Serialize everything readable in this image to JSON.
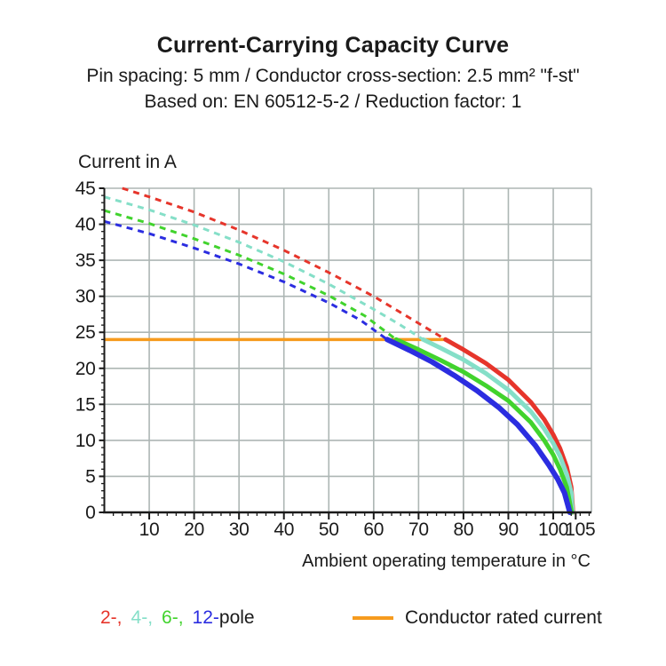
{
  "header": {
    "title": "Current-Carrying Capacity Curve",
    "subtitle1": "Pin spacing: 5 mm / Conductor cross-section: 2.5 mm² \"f-st\"",
    "subtitle2": "Based on: EN 60512-5-2 / Reduction factor: 1"
  },
  "chart_data": {
    "type": "line",
    "title": "Current-Carrying Capacity Curve",
    "xlabel": "Ambient operating temperature in °C",
    "ylabel": "Current in A",
    "xlim": [
      0,
      108.5
    ],
    "ylim": [
      0,
      45
    ],
    "x_ticks": [
      10,
      20,
      30,
      40,
      50,
      60,
      70,
      80,
      90,
      100,
      105
    ],
    "y_ticks": [
      0,
      5,
      10,
      15,
      20,
      25,
      30,
      35,
      40,
      45
    ],
    "x_minor_step": 2,
    "y_minor_step": 1,
    "grid_x_step": 10,
    "grid_y_step": 5,
    "grid_on": true,
    "colors": {
      "grid": "#adb6b4",
      "axis": "#1a1a1a",
      "text": "#1a1a1a"
    },
    "rated_current": {
      "label": "Conductor rated current",
      "value": 24,
      "x_start": 0,
      "x_end": 76,
      "color": "#f69b1e"
    },
    "series": [
      {
        "name": "2-pole",
        "color": "#e6352b",
        "style_above_rated": "dashed",
        "dashed": [
          [
            4,
            45
          ],
          [
            10,
            43.8
          ],
          [
            20,
            41.7
          ],
          [
            30,
            39.2
          ],
          [
            40,
            36.4
          ],
          [
            50,
            33.3
          ],
          [
            60,
            30
          ],
          [
            68,
            27
          ],
          [
            76,
            24
          ]
        ],
        "solid": [
          [
            76,
            24
          ],
          [
            80,
            22.6
          ],
          [
            85,
            20.7
          ],
          [
            90,
            18.4
          ],
          [
            95,
            15.3
          ],
          [
            98,
            12.9
          ],
          [
            100,
            10.8
          ],
          [
            101.5,
            8.9
          ],
          [
            103,
            6.3
          ],
          [
            104,
            3.5
          ],
          [
            104.4,
            0
          ]
        ]
      },
      {
        "name": "4-pole",
        "color": "#85dfc8",
        "style_above_rated": "dashed",
        "dashed": [
          [
            0,
            43.8
          ],
          [
            10,
            42
          ],
          [
            20,
            39.9
          ],
          [
            30,
            37.5
          ],
          [
            40,
            34.8
          ],
          [
            50,
            31.7
          ],
          [
            60,
            28.2
          ],
          [
            66,
            26
          ],
          [
            71,
            24
          ]
        ],
        "solid": [
          [
            71,
            24
          ],
          [
            75,
            22.8
          ],
          [
            80,
            21.2
          ],
          [
            85,
            19.3
          ],
          [
            90,
            17
          ],
          [
            95,
            14
          ],
          [
            98,
            11.6
          ],
          [
            100,
            9.6
          ],
          [
            101.5,
            7.8
          ],
          [
            103,
            5.3
          ],
          [
            104,
            2.8
          ],
          [
            104.3,
            0
          ]
        ]
      },
      {
        "name": "6-pole",
        "color": "#41d32d",
        "style_above_rated": "dashed",
        "dashed": [
          [
            0,
            41.9
          ],
          [
            10,
            40.1
          ],
          [
            20,
            38
          ],
          [
            30,
            35.7
          ],
          [
            40,
            33.1
          ],
          [
            50,
            30.1
          ],
          [
            58,
            27.3
          ],
          [
            65,
            24
          ]
        ],
        "solid": [
          [
            65,
            24
          ],
          [
            70,
            22.6
          ],
          [
            75,
            21.1
          ],
          [
            80,
            19.5
          ],
          [
            85,
            17.6
          ],
          [
            90,
            15.5
          ],
          [
            95,
            12.5
          ],
          [
            98,
            10
          ],
          [
            100,
            8
          ],
          [
            101.5,
            6
          ],
          [
            103,
            3.5
          ],
          [
            104.1,
            0
          ]
        ]
      },
      {
        "name": "12-pole",
        "color": "#2b2de0",
        "style_above_rated": "dashed",
        "dashed": [
          [
            0,
            40.4
          ],
          [
            10,
            38.7
          ],
          [
            20,
            36.7
          ],
          [
            30,
            34.5
          ],
          [
            40,
            32
          ],
          [
            50,
            29.1
          ],
          [
            57,
            26.7
          ],
          [
            63,
            24
          ]
        ],
        "solid": [
          [
            63,
            24
          ],
          [
            68,
            22.5
          ],
          [
            73,
            20.9
          ],
          [
            78,
            19
          ],
          [
            83,
            16.9
          ],
          [
            88,
            14.5
          ],
          [
            92,
            12.2
          ],
          [
            96,
            9.3
          ],
          [
            99,
            6.6
          ],
          [
            101,
            4.6
          ],
          [
            102.5,
            2.7
          ],
          [
            103.7,
            0
          ]
        ]
      }
    ]
  },
  "legend": {
    "pole_items": [
      {
        "series": "2-pole",
        "label": "2-,",
        "color": "#e6352b"
      },
      {
        "series": "4-pole",
        "label": "4-,",
        "color": "#85dfc8"
      },
      {
        "series": "6-pole",
        "label": "6-,",
        "color": "#41d32d"
      },
      {
        "series": "12-pole",
        "label": "12-",
        "color": "#2b2de0"
      }
    ],
    "pole_suffix": "pole",
    "rated_label": "Conductor rated current"
  }
}
